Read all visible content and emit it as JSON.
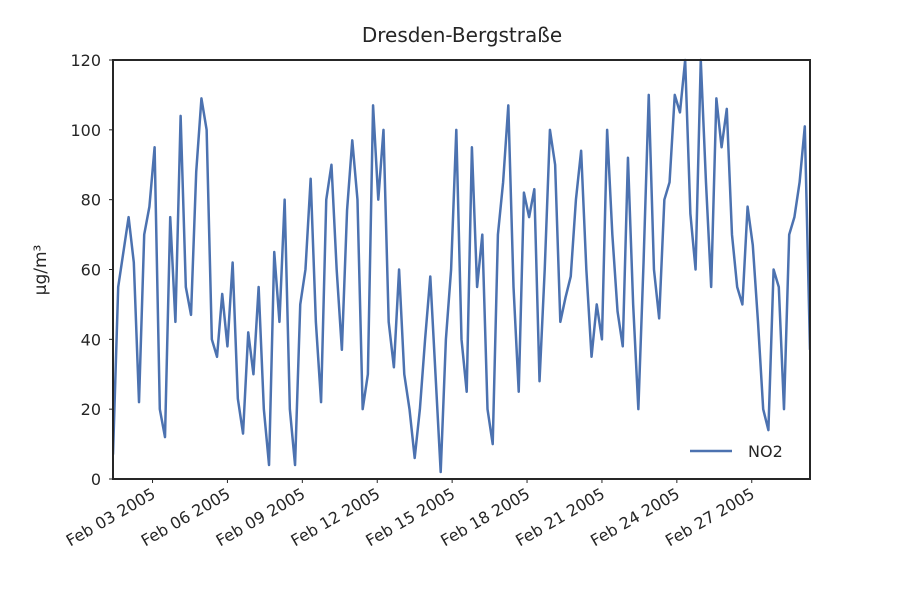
{
  "chart_data": {
    "type": "line",
    "title": "Dresden-Bergstraße",
    "ylabel": "µg/m³",
    "legend": "lower right",
    "xlim": [
      "2005-02-01T10:00",
      "2005-03-01T08:00"
    ],
    "ylim": [
      0,
      120
    ],
    "yticks": [
      0,
      20,
      40,
      60,
      80,
      100,
      120
    ],
    "xticks": [
      {
        "value": "2005-02-03T00:00",
        "label": "Feb 03 2005"
      },
      {
        "value": "2005-02-06T00:00",
        "label": "Feb 06 2005"
      },
      {
        "value": "2005-02-09T00:00",
        "label": "Feb 09 2005"
      },
      {
        "value": "2005-02-12T00:00",
        "label": "Feb 12 2005"
      },
      {
        "value": "2005-02-15T00:00",
        "label": "Feb 15 2005"
      },
      {
        "value": "2005-02-18T00:00",
        "label": "Feb 18 2005"
      },
      {
        "value": "2005-02-21T00:00",
        "label": "Feb 21 2005"
      },
      {
        "value": "2005-02-24T00:00",
        "label": "Feb 24 2005"
      },
      {
        "value": "2005-02-27T00:00",
        "label": "Feb 27 2005"
      }
    ],
    "x": [
      "2005-02-01T10:00",
      "2005-02-01T15:00",
      "2005-02-01T20:00",
      "2005-02-02T01:00",
      "2005-02-02T06:00",
      "2005-02-02T11:00",
      "2005-02-02T16:00",
      "2005-02-02T21:00",
      "2005-02-03T02:00",
      "2005-02-03T07:00",
      "2005-02-03T12:00",
      "2005-02-03T17:00",
      "2005-02-03T22:00",
      "2005-02-04T03:00",
      "2005-02-04T08:00",
      "2005-02-04T13:00",
      "2005-02-04T18:00",
      "2005-02-04T23:00",
      "2005-02-05T04:00",
      "2005-02-05T09:00",
      "2005-02-05T14:00",
      "2005-02-05T19:00",
      "2005-02-06T00:00",
      "2005-02-06T05:00",
      "2005-02-06T10:00",
      "2005-02-06T15:00",
      "2005-02-06T20:00",
      "2005-02-07T01:00",
      "2005-02-07T06:00",
      "2005-02-07T11:00",
      "2005-02-07T16:00",
      "2005-02-07T21:00",
      "2005-02-08T02:00",
      "2005-02-08T07:00",
      "2005-02-08T12:00",
      "2005-02-08T17:00",
      "2005-02-08T22:00",
      "2005-02-09T03:00",
      "2005-02-09T08:00",
      "2005-02-09T13:00",
      "2005-02-09T18:00",
      "2005-02-09T23:00",
      "2005-02-10T04:00",
      "2005-02-10T09:00",
      "2005-02-10T14:00",
      "2005-02-10T19:00",
      "2005-02-11T00:00",
      "2005-02-11T05:00",
      "2005-02-11T10:00",
      "2005-02-11T15:00",
      "2005-02-11T20:00",
      "2005-02-12T01:00",
      "2005-02-12T06:00",
      "2005-02-12T11:00",
      "2005-02-12T16:00",
      "2005-02-12T21:00",
      "2005-02-13T02:00",
      "2005-02-13T07:00",
      "2005-02-13T12:00",
      "2005-02-13T17:00",
      "2005-02-13T22:00",
      "2005-02-14T03:00",
      "2005-02-14T08:00",
      "2005-02-14T13:00",
      "2005-02-14T18:00",
      "2005-02-14T23:00",
      "2005-02-15T04:00",
      "2005-02-15T09:00",
      "2005-02-15T14:00",
      "2005-02-15T19:00",
      "2005-02-16T00:00",
      "2005-02-16T05:00",
      "2005-02-16T10:00",
      "2005-02-16T15:00",
      "2005-02-16T20:00",
      "2005-02-17T01:00",
      "2005-02-17T06:00",
      "2005-02-17T11:00",
      "2005-02-17T16:00",
      "2005-02-17T21:00",
      "2005-02-18T02:00",
      "2005-02-18T07:00",
      "2005-02-18T12:00",
      "2005-02-18T17:00",
      "2005-02-18T22:00",
      "2005-02-19T03:00",
      "2005-02-19T08:00",
      "2005-02-19T13:00",
      "2005-02-19T18:00",
      "2005-02-19T23:00",
      "2005-02-20T04:00",
      "2005-02-20T09:00",
      "2005-02-20T14:00",
      "2005-02-20T19:00",
      "2005-02-21T00:00",
      "2005-02-21T05:00",
      "2005-02-21T10:00",
      "2005-02-21T15:00",
      "2005-02-21T20:00",
      "2005-02-22T01:00",
      "2005-02-22T06:00",
      "2005-02-22T11:00",
      "2005-02-22T16:00",
      "2005-02-22T21:00",
      "2005-02-23T02:00",
      "2005-02-23T07:00",
      "2005-02-23T12:00",
      "2005-02-23T17:00",
      "2005-02-23T22:00",
      "2005-02-24T03:00",
      "2005-02-24T08:00",
      "2005-02-24T13:00",
      "2005-02-24T18:00",
      "2005-02-24T23:00",
      "2005-02-25T04:00",
      "2005-02-25T09:00",
      "2005-02-25T14:00",
      "2005-02-25T19:00",
      "2005-02-26T00:00",
      "2005-02-26T05:00",
      "2005-02-26T10:00",
      "2005-02-26T15:00",
      "2005-02-26T20:00",
      "2005-02-27T01:00",
      "2005-02-27T06:00",
      "2005-02-27T11:00",
      "2005-02-27T16:00",
      "2005-02-27T21:00",
      "2005-02-28T02:00",
      "2005-02-28T07:00",
      "2005-02-28T12:00",
      "2005-02-28T17:00",
      "2005-02-28T22:00",
      "2005-03-01T03:00",
      "2005-03-01T08:00"
    ],
    "series": [
      {
        "name": "NO2",
        "color": "#4c72b0",
        "values": [
          7,
          55,
          65,
          75,
          62,
          22,
          70,
          78,
          95,
          20,
          12,
          75,
          45,
          104,
          55,
          47,
          88,
          109,
          100,
          40,
          35,
          53,
          38,
          62,
          23,
          13,
          42,
          30,
          55,
          20,
          4,
          65,
          45,
          80,
          20,
          4,
          50,
          60,
          86,
          45,
          22,
          80,
          90,
          60,
          37,
          77,
          97,
          80,
          20,
          30,
          107,
          80,
          100,
          45,
          32,
          60,
          30,
          20,
          6,
          20,
          40,
          58,
          30,
          2,
          40,
          60,
          100,
          40,
          25,
          95,
          55,
          70,
          20,
          10,
          70,
          85,
          107,
          55,
          25,
          82,
          75,
          83,
          28,
          60,
          100,
          90,
          45,
          52,
          58,
          80,
          94,
          60,
          35,
          50,
          40,
          100,
          70,
          48,
          38,
          92,
          50,
          20,
          62,
          110,
          60,
          46,
          80,
          85,
          110,
          105,
          120,
          76,
          60,
          120,
          85,
          55,
          109,
          95,
          106,
          70,
          55,
          50,
          78,
          67,
          45,
          20,
          14,
          60,
          55,
          20,
          70,
          75,
          85,
          101,
          37
        ]
      }
    ]
  }
}
